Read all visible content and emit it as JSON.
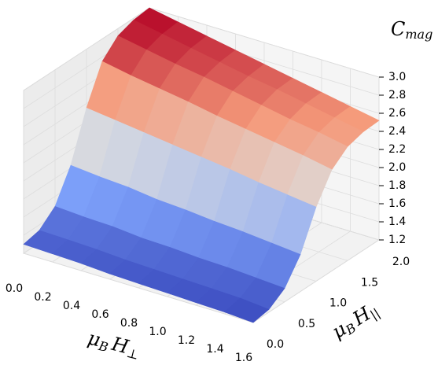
{
  "chart_data": {
    "type": "surface",
    "xlabel": [
      "μ",
      "B",
      "H",
      "⊥"
    ],
    "ylabel": [
      "μ",
      "B",
      "H",
      "||"
    ],
    "zlabel": [
      "C",
      "mag"
    ],
    "colormap": "coolwarm",
    "x": [
      0,
      0.2,
      0.4,
      0.6,
      0.8,
      1.0,
      1.2,
      1.4,
      1.6
    ],
    "y": [
      0,
      0.25,
      0.5,
      0.75,
      1.0,
      1.25,
      1.5,
      1.75,
      2.0
    ],
    "z": [
      [
        1.3,
        1.34,
        1.49,
        1.83,
        2.35,
        2.75,
        2.92,
        2.98,
        3.0
      ],
      [
        1.29,
        1.33,
        1.47,
        1.8,
        2.31,
        2.69,
        2.86,
        2.92,
        2.94
      ],
      [
        1.28,
        1.32,
        1.46,
        1.78,
        2.27,
        2.64,
        2.8,
        2.86,
        2.88
      ],
      [
        1.26,
        1.3,
        1.43,
        1.74,
        2.23,
        2.59,
        2.75,
        2.8,
        2.82
      ],
      [
        1.25,
        1.29,
        1.42,
        1.72,
        2.19,
        2.53,
        2.69,
        2.74,
        2.76
      ],
      [
        1.24,
        1.28,
        1.4,
        1.69,
        2.15,
        2.48,
        2.63,
        2.69,
        2.7
      ],
      [
        1.23,
        1.27,
        1.39,
        1.67,
        2.1,
        2.43,
        2.57,
        2.63,
        2.64
      ],
      [
        1.22,
        1.26,
        1.37,
        1.64,
        2.06,
        2.38,
        2.52,
        2.57,
        2.58
      ],
      [
        1.2,
        1.23,
        1.35,
        1.61,
        2.02,
        2.32,
        2.46,
        2.51,
        2.52
      ]
    ],
    "xlim": [
      0,
      1.6
    ],
    "ylim": [
      0,
      2.0
    ],
    "zlim": [
      1.2,
      3.0
    ],
    "xticks": [
      {
        "value": 0,
        "label": "0.0"
      },
      0.2,
      0.4,
      0.6,
      0.8,
      {
        "value": 1,
        "label": "1.0"
      },
      1.2,
      1.4,
      1.6
    ],
    "yticks": [
      {
        "value": 0,
        "label": "0.0"
      },
      0.5,
      {
        "value": 1,
        "label": "1.0"
      },
      1.5,
      {
        "value": 2,
        "label": "2.0"
      }
    ],
    "zticks": [
      1.2,
      1.4,
      1.6,
      1.8,
      {
        "value": 2,
        "label": "2.0"
      },
      2.2,
      2.4,
      2.6,
      2.8,
      {
        "value": 3,
        "label": "3.0"
      }
    ],
    "grid": true
  }
}
